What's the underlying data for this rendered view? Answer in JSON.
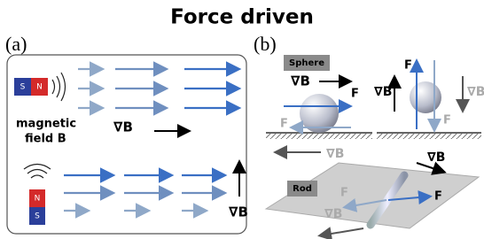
{
  "title": "Force driven",
  "panel_a": {
    "label": "(a)",
    "magnet_top": {
      "south": "S",
      "north": "N"
    },
    "field_label": {
      "line1": "magnetic",
      "line2": "field B"
    },
    "gradient_top": "∇B",
    "magnet_bottom": {
      "north": "N",
      "south": "S"
    },
    "gradient_bottom": "∇B"
  },
  "panel_b": {
    "label": "(b)",
    "sphere": {
      "tag": "Sphere",
      "gradient": "∇B",
      "force": "F",
      "ghost_force": "F",
      "ghost_gradient": "∇B"
    },
    "sphere_vertical": {
      "force": "F",
      "gradient": "∇B",
      "ghost_force": "F",
      "ghost_gradient": "∇B"
    },
    "rod": {
      "tag": "Rod",
      "gradient": "∇B",
      "force": "F",
      "ghost_force": "F",
      "ghost_gradient": "∇B"
    }
  }
}
